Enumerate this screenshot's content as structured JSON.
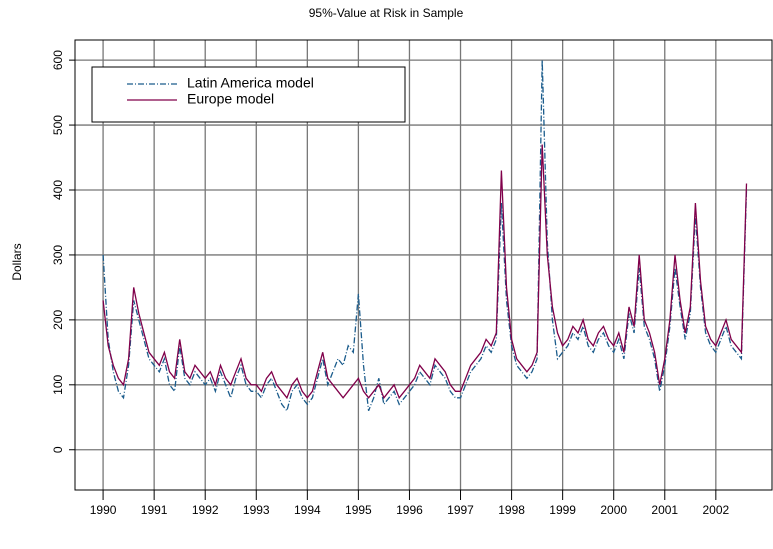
{
  "chart_data": {
    "type": "line",
    "title": "95%-Value at Risk in Sample",
    "ylabel": "Dollars",
    "x": [
      1990,
      1990.1,
      1990.2,
      1990.3,
      1990.4,
      1990.5,
      1990.6,
      1990.7,
      1990.8,
      1990.9,
      1991,
      1991.1,
      1991.2,
      1991.3,
      1991.4,
      1991.5,
      1991.6,
      1991.7,
      1991.8,
      1991.9,
      1992,
      1992.1,
      1992.2,
      1992.3,
      1992.4,
      1992.5,
      1992.6,
      1992.7,
      1992.8,
      1992.9,
      1993,
      1993.1,
      1993.2,
      1993.3,
      1993.4,
      1993.5,
      1993.6,
      1993.7,
      1993.8,
      1993.9,
      1994,
      1994.1,
      1994.2,
      1994.3,
      1994.4,
      1994.5,
      1994.6,
      1994.7,
      1994.8,
      1994.9,
      1995,
      1995.1,
      1995.2,
      1995.3,
      1995.4,
      1995.5,
      1995.6,
      1995.7,
      1995.8,
      1995.9,
      1996,
      1996.1,
      1996.2,
      1996.3,
      1996.4,
      1996.5,
      1996.6,
      1996.7,
      1996.8,
      1996.9,
      1997,
      1997.1,
      1997.2,
      1997.3,
      1997.4,
      1997.5,
      1997.6,
      1997.7,
      1997.8,
      1997.9,
      1998,
      1998.1,
      1998.2,
      1998.3,
      1998.4,
      1998.5,
      1998.6,
      1998.7,
      1998.8,
      1998.9,
      1999,
      1999.1,
      1999.2,
      1999.3,
      1999.4,
      1999.5,
      1999.6,
      1999.7,
      1999.8,
      1999.9,
      2000,
      2000.1,
      2000.2,
      2000.3,
      2000.4,
      2000.5,
      2000.6,
      2000.7,
      2000.8,
      2000.9,
      2001,
      2001.1,
      2001.2,
      2001.3,
      2001.4,
      2001.5,
      2001.6,
      2001.7,
      2001.8,
      2001.9,
      2002,
      2002.1,
      2002.2,
      2002.3,
      2002.4,
      2002.5,
      2002.6
    ],
    "series": [
      {
        "name": "Latin America model",
        "color": "#1b5c8c",
        "dash": "dashdot",
        "values": [
          300,
          170,
          120,
          90,
          80,
          130,
          230,
          200,
          170,
          140,
          130,
          120,
          140,
          100,
          90,
          160,
          110,
          100,
          120,
          110,
          100,
          110,
          90,
          120,
          100,
          80,
          110,
          130,
          100,
          90,
          90,
          80,
          100,
          110,
          90,
          70,
          60,
          90,
          100,
          80,
          70,
          80,
          110,
          140,
          100,
          120,
          140,
          130,
          160,
          150,
          240,
          130,
          60,
          80,
          110,
          70,
          80,
          90,
          70,
          80,
          90,
          100,
          120,
          110,
          100,
          130,
          120,
          110,
          90,
          80,
          80,
          100,
          120,
          130,
          140,
          160,
          150,
          170,
          380,
          230,
          160,
          130,
          120,
          110,
          120,
          140,
          600,
          320,
          200,
          140,
          150,
          160,
          180,
          170,
          190,
          160,
          150,
          170,
          180,
          160,
          150,
          170,
          140,
          210,
          180,
          280,
          190,
          170,
          140,
          90,
          130,
          190,
          280,
          220,
          170,
          210,
          360,
          250,
          180,
          160,
          150,
          170,
          190,
          160,
          150,
          140,
          400
        ]
      },
      {
        "name": "Europe model",
        "color": "#80004a",
        "dash": "solid",
        "values": [
          230,
          160,
          130,
          110,
          100,
          140,
          250,
          210,
          180,
          150,
          140,
          130,
          150,
          120,
          110,
          170,
          120,
          110,
          130,
          120,
          110,
          120,
          100,
          130,
          110,
          100,
          120,
          140,
          110,
          100,
          100,
          90,
          110,
          120,
          100,
          90,
          80,
          100,
          110,
          90,
          80,
          90,
          120,
          150,
          110,
          100,
          90,
          80,
          90,
          100,
          110,
          90,
          80,
          90,
          100,
          80,
          90,
          100,
          80,
          90,
          100,
          110,
          130,
          120,
          110,
          140,
          130,
          120,
          100,
          90,
          90,
          110,
          130,
          140,
          150,
          170,
          160,
          180,
          430,
          250,
          170,
          140,
          130,
          120,
          130,
          150,
          470,
          300,
          220,
          180,
          160,
          170,
          190,
          180,
          200,
          170,
          160,
          180,
          190,
          170,
          160,
          180,
          150,
          220,
          190,
          300,
          200,
          180,
          150,
          100,
          140,
          200,
          300,
          230,
          180,
          220,
          380,
          260,
          190,
          170,
          160,
          180,
          200,
          170,
          160,
          150,
          410
        ]
      }
    ],
    "xlim": [
      1989.45,
      2003.1
    ],
    "xticks": [
      1990,
      1991,
      1992,
      1993,
      1994,
      1995,
      1996,
      1997,
      1998,
      1999,
      2000,
      2001,
      2002
    ],
    "ylim": [
      -62,
      631
    ],
    "yticks": [
      0,
      100,
      200,
      300,
      400,
      500,
      600
    ],
    "grid": true,
    "legend": "upper left"
  }
}
